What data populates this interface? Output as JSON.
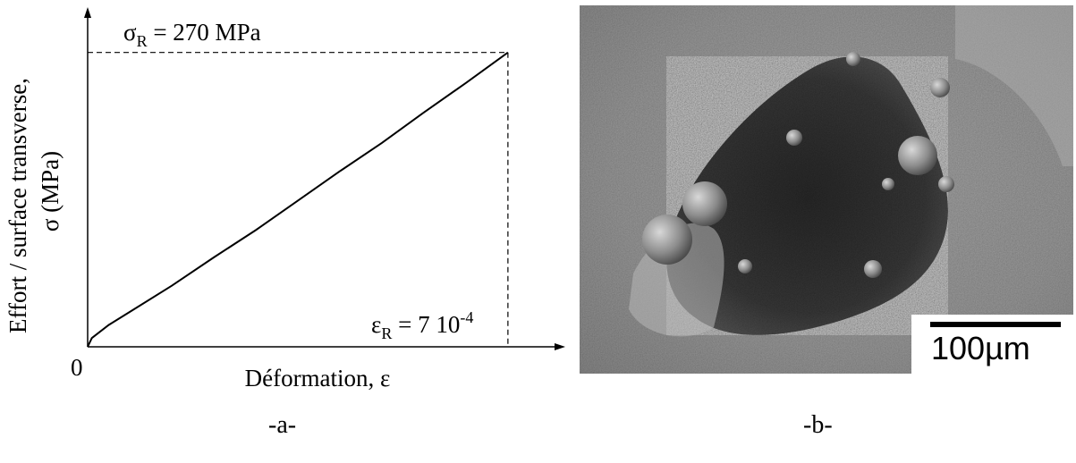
{
  "chart_data": {
    "type": "line",
    "xlabel": "Déformation, ε",
    "ylabel_line1": "Effort / surface transverse,",
    "ylabel_line2": "σ (MPa)",
    "origin_label": "0",
    "strength": {
      "symbol": "σ",
      "subscript": "R",
      "text": " = 270 MPa",
      "value": 270
    },
    "strain": {
      "symbol": "ε",
      "subscript": "R",
      "text": " = 7 10",
      "superscript": "-4",
      "value": 0.0007
    },
    "xlim": [
      0,
      0.0008
    ],
    "ylim": [
      0,
      305
    ],
    "series": [
      {
        "x": [
          0,
          7e-06,
          3.5e-05,
          7e-05,
          0.00014,
          0.00021,
          0.00028,
          0.00035,
          0.00042,
          0.00049,
          0.00056,
          0.00063,
          0.0007
        ],
        "y": [
          0,
          8,
          20,
          32,
          56,
          82,
          107,
          134,
          161,
          187,
          215,
          242,
          270
        ]
      }
    ]
  },
  "panels": {
    "a": "-a-",
    "b": "-b-"
  },
  "micrograph": {
    "scale_label": "100µm"
  },
  "colors": {
    "curve": "#000000",
    "background": "#ffffff"
  }
}
